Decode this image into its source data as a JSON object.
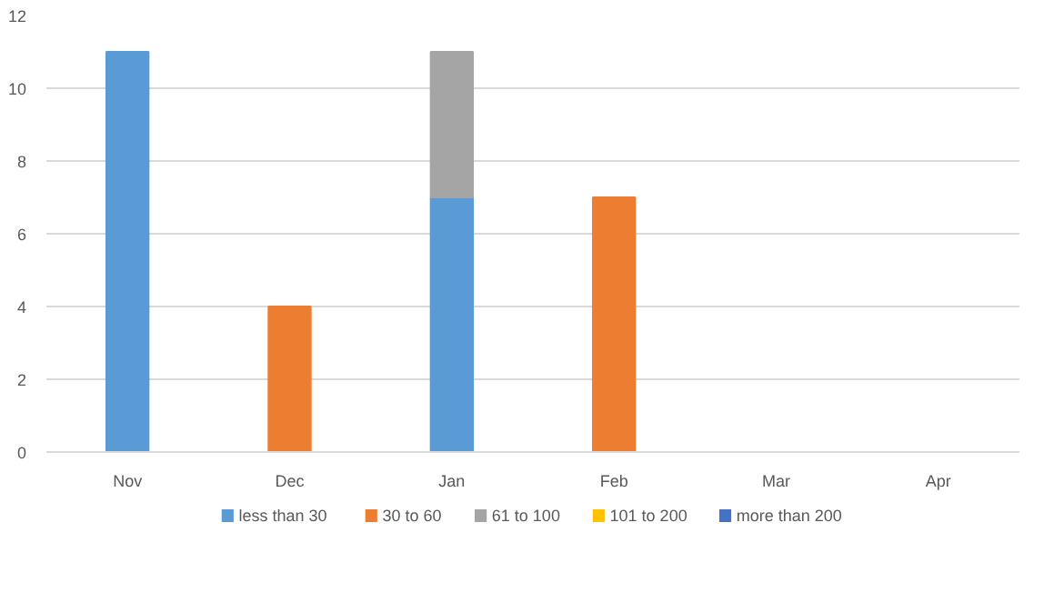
{
  "chart_data": {
    "type": "bar",
    "stacked": true,
    "categories": [
      "Nov",
      "Dec",
      "Jan",
      "Feb",
      "Mar",
      "Apr"
    ],
    "series": [
      {
        "name": "less than 30",
        "color": "#5b9bd5",
        "values": [
          11,
          null,
          7,
          null,
          null,
          null
        ]
      },
      {
        "name": "30 to 60",
        "color": "#ed7d31",
        "values": [
          null,
          4,
          null,
          7,
          null,
          null
        ]
      },
      {
        "name": "61 to 100",
        "color": "#a5a5a5",
        "values": [
          null,
          null,
          4,
          null,
          null,
          null
        ]
      },
      {
        "name": "101 to 200",
        "color": "#ffc000",
        "values": [
          null,
          null,
          null,
          null,
          null,
          null
        ]
      },
      {
        "name": "more than 200",
        "color": "#4472c4",
        "values": [
          null,
          null,
          null,
          null,
          null,
          null
        ]
      }
    ],
    "ylim": [
      0,
      12
    ],
    "yticks": [
      0,
      2,
      4,
      6,
      8,
      10,
      12
    ],
    "grid": "y",
    "legend": "bottom"
  }
}
